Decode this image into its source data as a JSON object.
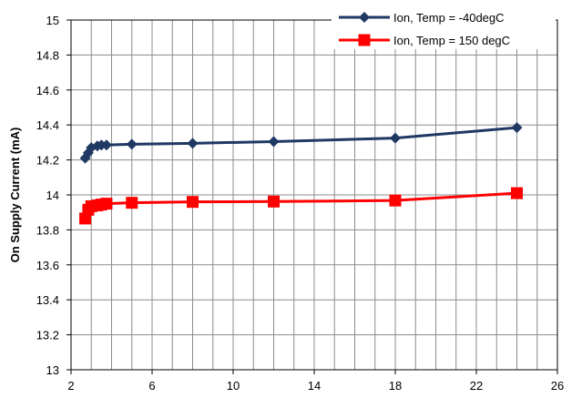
{
  "chart_data": {
    "type": "line",
    "title": "",
    "xlabel": "",
    "ylabel": "On Supply Current  (mA)",
    "xlim": [
      2,
      26
    ],
    "ylim": [
      13,
      15
    ],
    "x_ticks": [
      2,
      6,
      10,
      14,
      18,
      22,
      26
    ],
    "y_ticks": [
      13,
      13.2,
      13.4,
      13.6,
      13.8,
      14,
      14.2,
      14.4,
      14.6,
      14.8,
      15
    ],
    "x_minor_step": 1,
    "y_minor_step": 0.2,
    "grid": true,
    "legend_position": "top-right",
    "series": [
      {
        "name": "Ion, Temp = -40degC",
        "color": "#1f3864",
        "marker": "diamond",
        "x": [
          2.7,
          2.85,
          3.0,
          3.3,
          3.5,
          3.75,
          5,
          8,
          12,
          18,
          24
        ],
        "y": [
          14.21,
          14.24,
          14.27,
          14.28,
          14.285,
          14.285,
          14.29,
          14.295,
          14.305,
          14.325,
          14.385
        ]
      },
      {
        "name": "Ion, Temp = 150 degC",
        "color": "#ff0000",
        "marker": "square",
        "x": [
          2.7,
          2.85,
          3.0,
          3.3,
          3.5,
          3.75,
          5,
          8,
          12,
          18,
          24
        ],
        "y": [
          13.865,
          13.915,
          13.935,
          13.94,
          13.945,
          13.95,
          13.955,
          13.96,
          13.962,
          13.968,
          14.01
        ]
      }
    ]
  }
}
